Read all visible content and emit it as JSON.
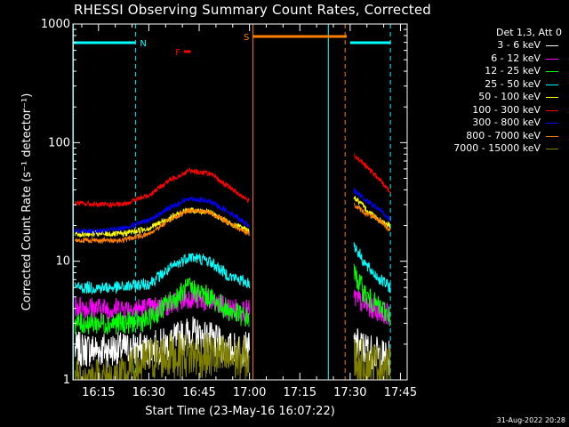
{
  "chart_data": {
    "type": "line",
    "title": "RHESSI Observing Summary Count Rates, Corrected",
    "xlabel": "Start Time (23-May-16 16:07:22)",
    "ylabel": "Corrected Count Rate (s⁻¹ detector⁻¹)",
    "yscale": "log",
    "ylim": [
      1,
      1000
    ],
    "xlim": [
      "16:07:22",
      "17:47:00"
    ],
    "x_ticks": [
      "16:15",
      "16:30",
      "16:45",
      "17:00",
      "17:15",
      "17:30",
      "17:45"
    ],
    "y_ticks": [
      "1",
      "10",
      "100",
      "1000"
    ],
    "legend_header": "Det 1,3, Att 0",
    "legend_position": "right",
    "timestamp": "31-Aug-2022 20:28",
    "flags": [
      {
        "label": "N",
        "color": "#00ffff",
        "intervals": [
          [
            "16:07:22",
            "16:26:00"
          ],
          [
            "17:30:00",
            "17:42:00"
          ]
        ]
      },
      {
        "label": "S",
        "color": "#ff7f00",
        "intervals": [
          [
            "17:01:00",
            "17:29:00"
          ]
        ]
      },
      {
        "label": "F",
        "color": "#ff0000",
        "intervals": [
          [
            "16:40:30",
            "16:42:30"
          ]
        ]
      }
    ],
    "markers": [
      {
        "time": "17:01:00",
        "color": "#ff7f00",
        "style": "solid"
      },
      {
        "time": "17:23:30",
        "color": "#00ffff",
        "style": "solid"
      },
      {
        "time": "16:26:00",
        "color": "#00ffff",
        "style": "dashed"
      },
      {
        "time": "17:28:30",
        "color": "#ff7f00",
        "style": "dashed"
      },
      {
        "time": "17:42:00",
        "color": "#00ffff",
        "style": "dashed"
      }
    ],
    "data_gap": [
      "17:01:00",
      "17:31:00"
    ],
    "series": [
      {
        "name": "3 - 6 keV",
        "color": "#ffffff",
        "x": [
          "16:08",
          "16:15",
          "16:22",
          "16:30",
          "16:36",
          "16:42",
          "16:48",
          "16:54",
          "17:00",
          "17:31",
          "17:35",
          "17:39",
          "17:42"
        ],
        "values": [
          1.8,
          1.8,
          1.8,
          1.8,
          2.0,
          2.5,
          2.2,
          1.8,
          1.8,
          2.0,
          1.8,
          1.6,
          1.5
        ]
      },
      {
        "name": "6 - 12 keV",
        "color": "#ff00ff",
        "x": [
          "16:08",
          "16:15",
          "16:22",
          "16:30",
          "16:36",
          "16:42",
          "16:48",
          "16:54",
          "17:00",
          "17:31",
          "17:35",
          "17:39",
          "17:42"
        ],
        "values": [
          4.2,
          4.0,
          4.0,
          4.0,
          4.3,
          5.0,
          4.5,
          4.0,
          3.8,
          5.0,
          4.2,
          3.8,
          3.5
        ]
      },
      {
        "name": "12 - 25 keV",
        "color": "#00ff00",
        "x": [
          "16:08",
          "16:15",
          "16:22",
          "16:30",
          "16:36",
          "16:42",
          "16:48",
          "16:54",
          "17:00",
          "17:31",
          "17:35",
          "17:39",
          "17:42"
        ],
        "values": [
          3.0,
          3.0,
          3.0,
          3.2,
          4.5,
          6.0,
          5.0,
          3.8,
          3.3,
          8.0,
          5.0,
          4.0,
          3.5
        ]
      },
      {
        "name": "25 - 50 keV",
        "color": "#00ffff",
        "x": [
          "16:08",
          "16:15",
          "16:22",
          "16:30",
          "16:36",
          "16:42",
          "16:48",
          "16:54",
          "17:00",
          "17:31",
          "17:35",
          "17:39",
          "17:42"
        ],
        "values": [
          6.0,
          6.0,
          6.0,
          6.5,
          8.5,
          11.0,
          10.0,
          7.5,
          6.5,
          14.0,
          9.0,
          7.0,
          6.0
        ]
      },
      {
        "name": "50 - 100 keV",
        "color": "#ffff00",
        "x": [
          "16:08",
          "16:15",
          "16:22",
          "16:30",
          "16:36",
          "16:42",
          "16:48",
          "16:54",
          "17:00",
          "17:31",
          "17:35",
          "17:39",
          "17:42"
        ],
        "values": [
          17,
          17,
          17,
          19,
          23,
          27,
          26,
          21,
          18,
          35,
          27,
          22,
          20
        ]
      },
      {
        "name": "100 - 300 keV",
        "color": "#ff0000",
        "x": [
          "16:08",
          "16:15",
          "16:22",
          "16:30",
          "16:36",
          "16:42",
          "16:48",
          "16:54",
          "17:00",
          "17:31",
          "17:35",
          "17:39",
          "17:42"
        ],
        "values": [
          31,
          30,
          30,
          36,
          48,
          58,
          55,
          42,
          32,
          80,
          62,
          48,
          38
        ]
      },
      {
        "name": "300 - 800 keV",
        "color": "#0000ff",
        "x": [
          "16:08",
          "16:15",
          "16:22",
          "16:30",
          "16:36",
          "16:42",
          "16:48",
          "16:54",
          "17:00",
          "17:31",
          "17:35",
          "17:39",
          "17:42"
        ],
        "values": [
          18,
          18,
          19,
          22,
          28,
          34,
          32,
          26,
          20,
          40,
          32,
          27,
          22
        ]
      },
      {
        "name": "800 - 7000 keV",
        "color": "#ff7f00",
        "x": [
          "16:08",
          "16:15",
          "16:22",
          "16:30",
          "16:36",
          "16:42",
          "16:48",
          "16:54",
          "17:00",
          "17:31",
          "17:35",
          "17:39",
          "17:42"
        ],
        "values": [
          15,
          15,
          15,
          17,
          22,
          27,
          26,
          21,
          17,
          30,
          25,
          22,
          18
        ]
      },
      {
        "name": "7000 - 15000 keV",
        "color": "#808000",
        "x": [
          "16:08",
          "16:15",
          "16:22",
          "16:30",
          "16:36",
          "16:42",
          "16:48",
          "16:54",
          "17:00",
          "17:31",
          "17:35",
          "17:39",
          "17:42"
        ],
        "values": [
          1.0,
          1.0,
          1.0,
          1.5,
          1.6,
          1.6,
          1.6,
          1.5,
          1.5,
          1.5,
          1.4,
          1.3,
          1.2
        ]
      }
    ]
  }
}
